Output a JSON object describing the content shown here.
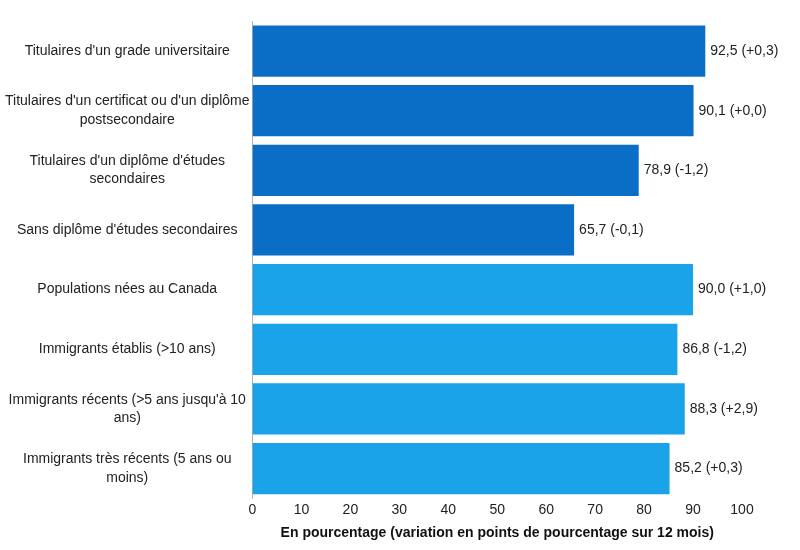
{
  "chart_data": {
    "type": "bar",
    "orientation": "horizontal",
    "categories": [
      "Titulaires d'un grade universitaire",
      "Titulaires d'un certificat ou d'un diplôme postsecondaire",
      "Titulaires d'un diplôme d'études secondaires",
      "Sans diplôme d'études secondaires",
      "Populations nées au Canada",
      "Immigrants établis (>10 ans)",
      "Immigrants récents (>5 ans jusqu'à 10 ans)",
      "Immigrants très récents (5 ans ou moins)"
    ],
    "values": [
      92.5,
      90.1,
      78.9,
      65.7,
      90.0,
      86.8,
      88.3,
      85.2
    ],
    "value_labels": [
      "92,5 (+0,3)",
      "90,1 (+0,0)",
      "78,9 (-1,2)",
      "65,7 (-0,1)",
      "90,0 (+1,0)",
      "86,8 (-1,2)",
      "88,3 (+2,9)",
      "85,2 (+0,3)"
    ],
    "colors": [
      "#0a6ec7",
      "#0a6ec7",
      "#0a6ec7",
      "#0a6ec7",
      "#1aa3e8",
      "#1aa3e8",
      "#1aa3e8",
      "#1aa3e8"
    ],
    "x_label": "En pourcentage (variation en points de pourcentage sur 12 mois)",
    "xlim": [
      0,
      100
    ],
    "xticks": [
      0,
      10,
      20,
      30,
      40,
      50,
      60,
      70,
      80,
      90,
      100
    ],
    "grid": false,
    "data_labels": true
  }
}
